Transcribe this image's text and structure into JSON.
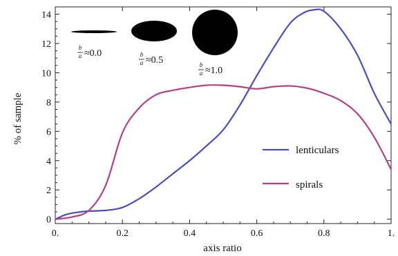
{
  "chart_data": {
    "type": "line",
    "xlabel": "axis ratio",
    "ylabel": "% of sample",
    "xlim": [
      0,
      1
    ],
    "ylim": [
      -0.3,
      14.5
    ],
    "x_ticks": [
      0,
      0.2,
      0.4,
      0.6,
      0.8,
      1.0
    ],
    "x_tick_labels": [
      "0.",
      "0.2",
      "0.4",
      "0.6",
      "0.8",
      "1."
    ],
    "y_ticks": [
      0,
      2,
      4,
      6,
      8,
      10,
      12,
      14
    ],
    "y_tick_labels": [
      "0",
      "2",
      "4",
      "6",
      "8",
      "10",
      "12",
      "14"
    ],
    "grid": false,
    "legend_position": "right",
    "series": [
      {
        "name": "lenticulars",
        "color": "#4b4bbf",
        "x": [
          0.0,
          0.03,
          0.06,
          0.1,
          0.15,
          0.2,
          0.25,
          0.3,
          0.35,
          0.4,
          0.45,
          0.5,
          0.55,
          0.6,
          0.65,
          0.7,
          0.74,
          0.77,
          0.8,
          0.85,
          0.9,
          0.95,
          1.0
        ],
        "y": [
          0.0,
          0.3,
          0.45,
          0.55,
          0.6,
          0.8,
          1.4,
          2.2,
          3.1,
          4.0,
          5.0,
          6.1,
          7.8,
          9.8,
          11.7,
          13.4,
          14.1,
          14.3,
          14.2,
          13.0,
          11.2,
          8.6,
          6.5
        ]
      },
      {
        "name": "spirals",
        "color": "#b4407f",
        "x": [
          0.0,
          0.05,
          0.1,
          0.15,
          0.2,
          0.25,
          0.3,
          0.35,
          0.4,
          0.45,
          0.5,
          0.55,
          0.6,
          0.65,
          0.7,
          0.75,
          0.8,
          0.85,
          0.9,
          0.95,
          1.0
        ],
        "y": [
          0.0,
          0.15,
          0.6,
          2.3,
          5.9,
          7.6,
          8.5,
          8.8,
          9.0,
          9.15,
          9.15,
          9.05,
          8.9,
          9.05,
          9.1,
          8.95,
          8.6,
          8.1,
          7.2,
          5.6,
          3.4
        ]
      }
    ],
    "annotations": [
      {
        "fraction_num": "b",
        "fraction_den": "a",
        "text": "≈0.0",
        "shape": "flat-ellipse"
      },
      {
        "fraction_num": "b",
        "fraction_den": "a",
        "text": "≈0.5",
        "shape": "ellipse"
      },
      {
        "fraction_num": "b",
        "fraction_den": "a",
        "text": "≈1.0",
        "shape": "circle"
      }
    ]
  }
}
